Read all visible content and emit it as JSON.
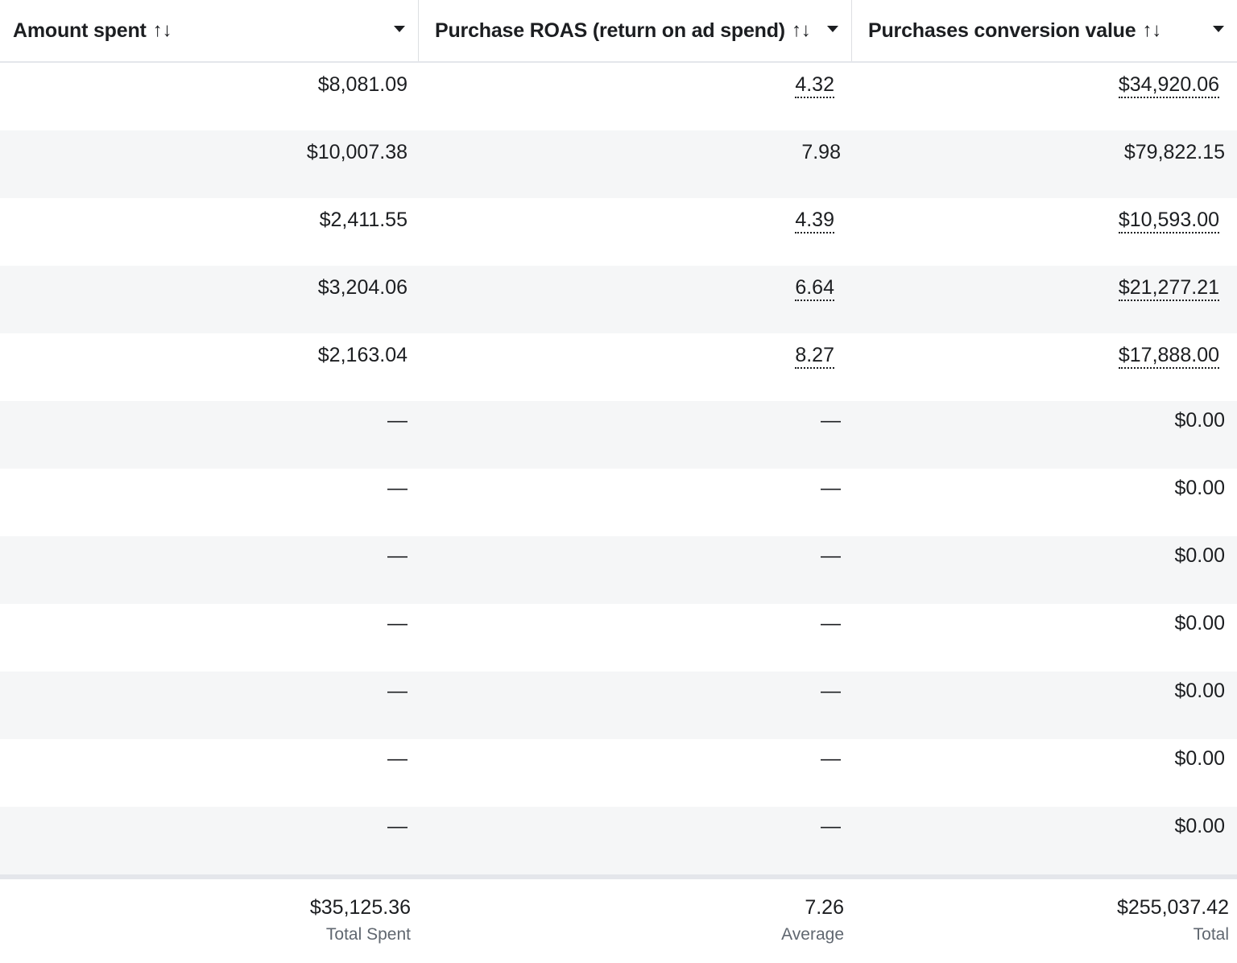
{
  "columns": [
    {
      "label": "Amount spent",
      "sort_icon": "↑↓"
    },
    {
      "label": "Purchase ROAS (return on ad spend)",
      "sort_icon": "↑↓"
    },
    {
      "label": "Purchases conversion value",
      "sort_icon": "↑↓"
    }
  ],
  "rows": [
    {
      "amount": "$8,081.09",
      "roas": "4.32",
      "value": "$34,920.06",
      "roas_linked": true,
      "value_linked": true
    },
    {
      "amount": "$10,007.38",
      "roas": "7.98",
      "value": "$79,822.15",
      "roas_linked": false,
      "value_linked": false
    },
    {
      "amount": "$2,411.55",
      "roas": "4.39",
      "value": "$10,593.00",
      "roas_linked": true,
      "value_linked": true
    },
    {
      "amount": "$3,204.06",
      "roas": "6.64",
      "value": "$21,277.21",
      "roas_linked": true,
      "value_linked": true
    },
    {
      "amount": "$2,163.04",
      "roas": "8.27",
      "value": "$17,888.00",
      "roas_linked": true,
      "value_linked": true
    },
    {
      "amount": "—",
      "roas": "—",
      "value": "$0.00",
      "roas_linked": false,
      "value_linked": false
    },
    {
      "amount": "—",
      "roas": "—",
      "value": "$0.00",
      "roas_linked": false,
      "value_linked": false
    },
    {
      "amount": "—",
      "roas": "—",
      "value": "$0.00",
      "roas_linked": false,
      "value_linked": false
    },
    {
      "amount": "—",
      "roas": "—",
      "value": "$0.00",
      "roas_linked": false,
      "value_linked": false
    },
    {
      "amount": "—",
      "roas": "—",
      "value": "$0.00",
      "roas_linked": false,
      "value_linked": false
    },
    {
      "amount": "—",
      "roas": "—",
      "value": "$0.00",
      "roas_linked": false,
      "value_linked": false
    },
    {
      "amount": "—",
      "roas": "—",
      "value": "$0.00",
      "roas_linked": false,
      "value_linked": false
    }
  ],
  "footer": {
    "amount": {
      "value": "$35,125.36",
      "label": "Total Spent"
    },
    "roas": {
      "value": "7.26",
      "label": "Average"
    },
    "value": {
      "value": "$255,037.42",
      "label": "Total"
    }
  },
  "colors": {
    "text": "#1c1e21",
    "alt_row": "#f5f6f7",
    "border": "#dddfe2",
    "muted": "#606770"
  }
}
